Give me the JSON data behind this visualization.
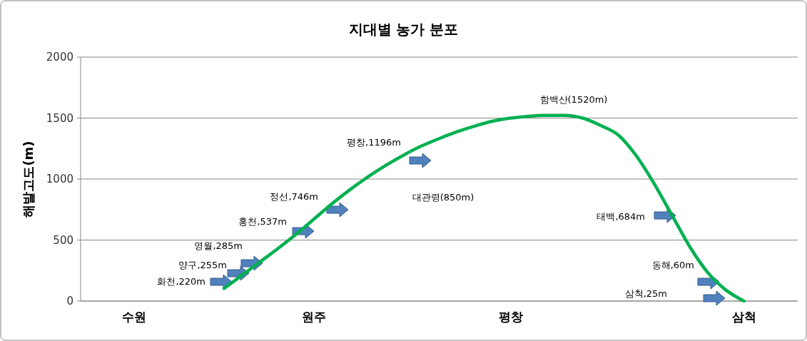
{
  "chart_data": {
    "type": "line",
    "title": "지대별 농가 분포",
    "ylabel": "해발고도(m)",
    "categories": [
      null,
      null,
      null,
      "수원",
      null,
      null,
      null,
      null,
      null,
      null,
      null,
      null,
      null,
      "원주",
      null,
      null,
      null,
      null,
      null,
      null,
      null,
      null,
      null,
      null,
      "평창",
      null,
      null,
      null,
      null,
      null,
      null,
      null,
      null,
      null,
      null,
      null,
      null,
      "삼척",
      null,
      null,
      null
    ],
    "ylim": [
      0,
      2000
    ],
    "yticks": [
      0,
      500,
      1000,
      1500,
      2000
    ],
    "grid": "y",
    "marker": "none",
    "series": [
      {
        "color": "#00b050",
        "values": [
          null,
          null,
          null,
          null,
          null,
          null,
          null,
          null,
          103,
          211,
          320,
          430,
          545,
          670,
          795,
          910,
          1015,
          1110,
          1195,
          1270,
          1332,
          1388,
          1435,
          1475,
          1500,
          1515,
          1522,
          1522,
          1500,
          1440,
          1360,
          1190,
          960,
          700,
          440,
          230,
          90,
          0,
          null,
          null,
          null
        ]
      }
    ],
    "annotations": [
      "화천,220m",
      "양구,255m",
      "영월,285m",
      "홍천,537m",
      "정선,746m",
      "평창,1196m",
      "태백,684m",
      "동해,60m",
      "삼척,25m",
      "함백산(1520m)",
      "대관령(850m)"
    ]
  }
}
